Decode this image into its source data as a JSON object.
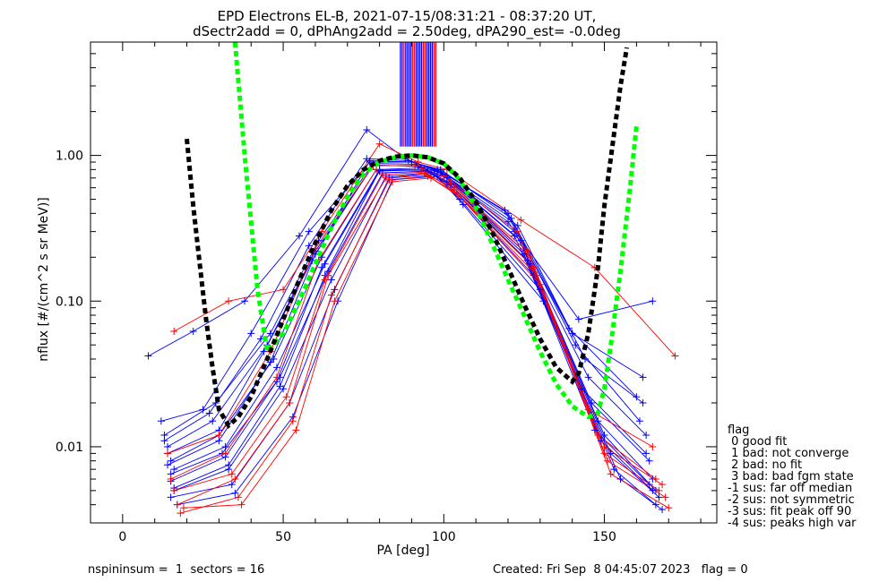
{
  "chart_data": {
    "type": "line",
    "title_line1": "EPD Electrons EL-B, 2021-07-15/08:31:21 - 08:37:20 UT,",
    "title_line2": "dSectr2add = 0, dPhAng2add = 2.50deg, dPA290_est=  -0.0deg",
    "xlabel": "PA [deg]",
    "ylabel": "nflux [#/(cm^2 s sr MeV)]",
    "xlim": [
      -10,
      185
    ],
    "ylim": [
      0.003,
      6
    ],
    "yscale": "log",
    "x_ticks": [
      0,
      50,
      100,
      150
    ],
    "x_tick_labels": [
      "0",
      "50",
      "100",
      "150"
    ],
    "y_ticks": [
      0.01,
      0.1,
      1.0
    ],
    "y_tick_labels": [
      "0.01",
      "0.10",
      "1.00"
    ],
    "grid": false,
    "series": [
      {
        "color": "#00ff00",
        "style": "dashed",
        "x": [
          35,
          38,
          40,
          42,
          45,
          50,
          55,
          60,
          65,
          70,
          75,
          80,
          85,
          90,
          95,
          100,
          105,
          110,
          115,
          120,
          125,
          130,
          135,
          140,
          145,
          148,
          150,
          152,
          155,
          158,
          160
        ],
        "values": [
          6,
          1.0,
          0.35,
          0.12,
          0.045,
          0.06,
          0.1,
          0.18,
          0.32,
          0.52,
          0.75,
          0.9,
          0.97,
          1.0,
          0.97,
          0.88,
          0.68,
          0.44,
          0.25,
          0.14,
          0.08,
          0.045,
          0.027,
          0.019,
          0.016,
          0.017,
          0.025,
          0.05,
          0.16,
          0.6,
          1.6
        ]
      },
      {
        "color": "#000000",
        "style": "dashed",
        "x": [
          20,
          22,
          24,
          26,
          28,
          30,
          33,
          36,
          40,
          45,
          50,
          55,
          60,
          65,
          70,
          75,
          80,
          85,
          90,
          95,
          100,
          105,
          110,
          115,
          120,
          125,
          130,
          135,
          140,
          142,
          145,
          148,
          150,
          153,
          155,
          157
        ],
        "values": [
          1.3,
          0.45,
          0.18,
          0.075,
          0.035,
          0.018,
          0.014,
          0.016,
          0.022,
          0.04,
          0.075,
          0.14,
          0.25,
          0.42,
          0.62,
          0.8,
          0.92,
          0.98,
          1.0,
          0.97,
          0.88,
          0.7,
          0.48,
          0.3,
          0.17,
          0.095,
          0.055,
          0.035,
          0.028,
          0.032,
          0.06,
          0.17,
          0.45,
          1.4,
          3,
          5.5
        ]
      }
    ],
    "measured_curves": [
      {
        "color": "#0000ff",
        "x": [
          8,
          22,
          38,
          55,
          76,
          88,
          98,
          120,
          142,
          165
        ],
        "values": [
          0.042,
          0.062,
          0.1,
          0.28,
          1.5,
          0.95,
          0.78,
          0.35,
          0.075,
          0.1
        ]
      },
      {
        "color": "#0000ff",
        "x": [
          12,
          25,
          40,
          58,
          77,
          90,
          99,
          121,
          140,
          162
        ],
        "values": [
          0.015,
          0.018,
          0.06,
          0.3,
          0.9,
          0.9,
          0.8,
          0.37,
          0.06,
          0.03
        ]
      },
      {
        "color": "#0000ff",
        "x": [
          14,
          28,
          45,
          60,
          78,
          92,
          100,
          122,
          145,
          163
        ],
        "values": [
          0.01,
          0.015,
          0.05,
          0.22,
          0.85,
          0.85,
          0.75,
          0.3,
          0.03,
          0.012
        ]
      },
      {
        "color": "#0000ff",
        "x": [
          15,
          30,
          47,
          62,
          79,
          93,
          101,
          124,
          146,
          164
        ],
        "values": [
          0.008,
          0.012,
          0.04,
          0.2,
          0.8,
          0.82,
          0.7,
          0.26,
          0.02,
          0.008
        ]
      },
      {
        "color": "#0000ff",
        "x": [
          16,
          32,
          48,
          63,
          80,
          94,
          102,
          125,
          148,
          165
        ],
        "values": [
          0.007,
          0.01,
          0.035,
          0.18,
          0.78,
          0.8,
          0.65,
          0.22,
          0.015,
          0.006
        ]
      },
      {
        "color": "#0000ff",
        "x": [
          13,
          29,
          46,
          61,
          78,
          91,
          100,
          123,
          144,
          162
        ],
        "values": [
          0.012,
          0.02,
          0.06,
          0.26,
          0.88,
          0.87,
          0.74,
          0.33,
          0.04,
          0.02
        ]
      },
      {
        "color": "#0000ff",
        "x": [
          15,
          31,
          49,
          64,
          81,
          95,
          103,
          127,
          150,
          166
        ],
        "values": [
          0.0065,
          0.009,
          0.03,
          0.16,
          0.76,
          0.78,
          0.6,
          0.18,
          0.012,
          0.005
        ]
      },
      {
        "color": "#0000ff",
        "x": [
          14,
          30,
          44,
          59,
          77,
          90,
          99,
          120,
          141,
          161
        ],
        "values": [
          0.009,
          0.013,
          0.045,
          0.19,
          0.92,
          0.9,
          0.78,
          0.4,
          0.05,
          0.015
        ]
      },
      {
        "color": "#0000ff",
        "x": [
          16,
          33,
          50,
          65,
          82,
          96,
          104,
          128,
          152,
          167
        ],
        "values": [
          0.005,
          0.007,
          0.025,
          0.14,
          0.72,
          0.76,
          0.55,
          0.15,
          0.009,
          0.0045
        ]
      },
      {
        "color": "#0000ff",
        "x": [
          15,
          34,
          52,
          66,
          83,
          97,
          105,
          130,
          153,
          166
        ],
        "values": [
          0.0045,
          0.0055,
          0.02,
          0.12,
          0.7,
          0.74,
          0.5,
          0.12,
          0.007,
          0.004
        ]
      },
      {
        "color": "#0000ff",
        "x": [
          13,
          27,
          43,
          58,
          76,
          89,
          98,
          119,
          139,
          160
        ],
        "values": [
          0.011,
          0.017,
          0.055,
          0.24,
          0.95,
          0.92,
          0.8,
          0.42,
          0.065,
          0.022
        ]
      },
      {
        "color": "#0000ff",
        "x": [
          17,
          35,
          53,
          67,
          84,
          98,
          106,
          131,
          155,
          168
        ],
        "values": [
          0.004,
          0.0048,
          0.016,
          0.1,
          0.68,
          0.72,
          0.46,
          0.1,
          0.006,
          0.0037
        ]
      },
      {
        "color": "#0000ff",
        "x": [
          14,
          30,
          46,
          60,
          78,
          92,
          100,
          122,
          143,
          163
        ],
        "values": [
          0.0075,
          0.011,
          0.038,
          0.21,
          0.86,
          0.84,
          0.72,
          0.28,
          0.025,
          0.009
        ]
      },
      {
        "color": "#0000ff",
        "x": [
          15,
          32,
          48,
          62,
          80,
          93,
          101,
          125,
          147,
          164
        ],
        "values": [
          0.0058,
          0.0085,
          0.028,
          0.17,
          0.8,
          0.8,
          0.66,
          0.21,
          0.013,
          0.0055
        ]
      },
      {
        "color": "#0000ff",
        "x": [
          16,
          33,
          49,
          63,
          80,
          94,
          102,
          126,
          149,
          165
        ],
        "values": [
          0.0052,
          0.0075,
          0.026,
          0.15,
          0.79,
          0.79,
          0.63,
          0.19,
          0.011,
          0.005
        ]
      },
      {
        "color": "#ff0000",
        "x": [
          16,
          33,
          50,
          62,
          80,
          92,
          101,
          124,
          147,
          172
        ],
        "values": [
          0.062,
          0.1,
          0.12,
          0.3,
          1.2,
          0.9,
          0.8,
          0.36,
          0.17,
          0.042
        ]
      },
      {
        "color": "#ff0000",
        "x": [
          17,
          35,
          52,
          64,
          82,
          94,
          103,
          127,
          150,
          168
        ],
        "values": [
          0.004,
          0.006,
          0.02,
          0.15,
          0.7,
          0.75,
          0.6,
          0.2,
          0.01,
          0.0055
        ]
      },
      {
        "color": "#ff0000",
        "x": [
          18,
          36,
          53,
          65,
          83,
          95,
          104,
          129,
          151,
          169
        ],
        "values": [
          0.0035,
          0.0045,
          0.015,
          0.11,
          0.68,
          0.72,
          0.55,
          0.15,
          0.008,
          0.0045
        ]
      },
      {
        "color": "#ff0000",
        "x": [
          15,
          32,
          48,
          61,
          79,
          93,
          102,
          126,
          148,
          166
        ],
        "values": [
          0.006,
          0.009,
          0.03,
          0.19,
          0.8,
          0.8,
          0.65,
          0.22,
          0.012,
          0.006
        ]
      },
      {
        "color": "#ff0000",
        "x": [
          14,
          30,
          46,
          60,
          78,
          91,
          100,
          123,
          145,
          165
        ],
        "values": [
          0.009,
          0.012,
          0.045,
          0.23,
          0.85,
          0.85,
          0.72,
          0.3,
          0.018,
          0.01
        ]
      },
      {
        "color": "#ff0000",
        "x": [
          16,
          34,
          51,
          63,
          81,
          94,
          103,
          128,
          150,
          167
        ],
        "values": [
          0.005,
          0.0065,
          0.022,
          0.14,
          0.74,
          0.77,
          0.58,
          0.17,
          0.009,
          0.005
        ]
      },
      {
        "color": "#ff0000",
        "x": [
          19,
          37,
          54,
          66,
          84,
          96,
          105,
          130,
          152,
          170
        ],
        "values": [
          0.0038,
          0.004,
          0.013,
          0.1,
          0.66,
          0.7,
          0.52,
          0.13,
          0.0065,
          0.0038
        ]
      }
    ],
    "legend": {
      "position": "right",
      "title": "flag",
      "items": [
        " 0 good fit",
        " 1 bad: not converge",
        " 2 bad: no fit",
        " 3 bad: bad fgm state",
        "-1 sus: far off median",
        "-2 sus: not symmetric",
        "-3 sus: fit peak off 90",
        "-4 sus: peaks high var"
      ]
    },
    "footer": {
      "left": "nspininsum =  1  sectors = 16",
      "right": "Created: Fri Sep  8 04:45:07 2023   flag = 0"
    }
  }
}
